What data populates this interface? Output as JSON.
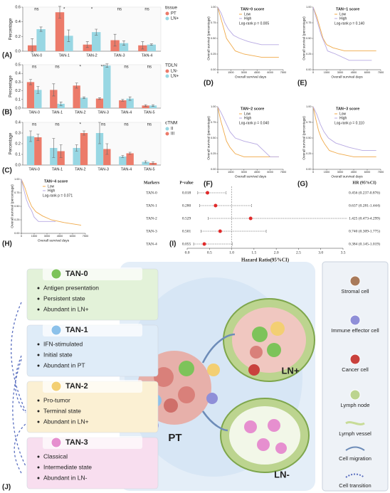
{
  "panel_labels": [
    "(A)",
    "(B)",
    "(C)",
    "(D)",
    "(E)",
    "(F)",
    "(G)",
    "(H)",
    "(I)",
    "(J)"
  ],
  "chart_data": [
    {
      "type": "bar",
      "ylabel": "Percentage",
      "legend_title": "tissue",
      "categories": [
        "TAN-0",
        "TAN-1",
        "TAN-2",
        "TAN-3",
        "TAN-4"
      ],
      "sig": [
        "ns",
        "*",
        "*",
        "ns",
        "ns"
      ],
      "series": [
        {
          "name": "PT",
          "color": "#ec7b6a",
          "values": [
            0.08,
            0.53,
            0.09,
            0.15,
            0.08
          ],
          "errors": [
            0.09,
            0.08,
            0.04,
            0.08,
            0.05
          ]
        },
        {
          "name": "LN+",
          "color": "#98d7e3",
          "values": [
            0.3,
            0.21,
            0.26,
            0.11,
            0.09
          ],
          "errors": [
            0.03,
            0.08,
            0.04,
            0.03,
            0.01
          ]
        }
      ],
      "ylim": [
        0,
        0.6
      ],
      "yticks": [
        {
          "value": 0,
          "label": "0.0"
        },
        {
          "value": 0.2,
          "label": "0.2"
        },
        {
          "value": 0.4,
          "label": "0.4"
        },
        {
          "value": 0.6,
          "label": "0.6"
        }
      ]
    },
    {
      "type": "bar",
      "ylabel": "Percentage",
      "legend_title": "TDLN",
      "categories": [
        "TAN-0",
        "TAN-1",
        "TAN-2",
        "TAN-3",
        "TAN-4",
        "TAN-5"
      ],
      "sig": [
        "ns",
        "ns",
        "*",
        "***",
        "ns",
        "ns"
      ],
      "series": [
        {
          "name": "LN-",
          "color": "#ec7b6a",
          "values": [
            0.3,
            0.21,
            0.26,
            0.11,
            0.09,
            0.03
          ],
          "errors": [
            0.03,
            0.07,
            0.03,
            0.01,
            0.01,
            0.01
          ]
        },
        {
          "name": "LN+",
          "color": "#98d7e3",
          "values": [
            0.21,
            0.05,
            0.12,
            0.49,
            0.11,
            0.03
          ],
          "errors": [
            0.04,
            0.02,
            0.01,
            0.02,
            0.02,
            0.01
          ]
        }
      ],
      "ylim": [
        0,
        0.5
      ],
      "yticks": [
        {
          "value": 0,
          "label": "0.0"
        },
        {
          "value": 0.1,
          "label": "0.1"
        },
        {
          "value": 0.2,
          "label": "0.2"
        },
        {
          "value": 0.3,
          "label": "0.3"
        },
        {
          "value": 0.4,
          "label": "0.4"
        },
        {
          "value": 0.5,
          "label": "0.5"
        }
      ]
    },
    {
      "type": "bar",
      "ylabel": "Percentage",
      "legend_title": "cTNM",
      "categories": [
        "TAN-0",
        "TAN-1",
        "TAN-2",
        "TAN-3",
        "TAN-4",
        "TAN-5"
      ],
      "sig": [
        "ns",
        "ns",
        "*",
        "ns",
        "ns",
        "ns"
      ],
      "series": [
        {
          "name": "II",
          "color": "#98d7e3",
          "values": [
            0.27,
            0.16,
            0.16,
            0.3,
            0.08,
            0.03
          ],
          "errors": [
            0.05,
            0.09,
            0.03,
            0.1,
            0.01,
            0.01
          ]
        },
        {
          "name": "III",
          "color": "#ec7b6a",
          "values": [
            0.26,
            0.13,
            0.3,
            0.15,
            0.11,
            0.02
          ],
          "errors": [
            0.03,
            0.06,
            0.02,
            0.05,
            0.01,
            0.01
          ]
        }
      ],
      "ylim": [
        0,
        0.4
      ],
      "yticks": [
        {
          "value": 0,
          "label": "0.0"
        },
        {
          "value": 0.1,
          "label": "0.1"
        },
        {
          "value": 0.2,
          "label": "0.2"
        },
        {
          "value": 0.3,
          "label": "0.3"
        },
        {
          "value": 0.4,
          "label": "0.4"
        }
      ]
    },
    {
      "type": "line",
      "title": "TAN−0 score",
      "annotation": "Log-rank p = 0.005",
      "xlabel": "Overall survival days",
      "ylabel": "Overall survival (percentage)",
      "series": [
        {
          "name": "Low",
          "color": "#f0aa4a",
          "x": [
            0,
            300,
            700,
            1000,
            1500,
            2000,
            3000,
            5000,
            7000
          ],
          "values": [
            1,
            0.85,
            0.65,
            0.5,
            0.4,
            0.3,
            0.25,
            0.2,
            0.2
          ]
        },
        {
          "name": "High",
          "color": "#b7a9e2",
          "x": [
            0,
            400,
            800,
            1200,
            1800,
            2500,
            3500,
            5000,
            7000
          ],
          "values": [
            1,
            0.9,
            0.75,
            0.65,
            0.55,
            0.5,
            0.45,
            0.4,
            0.4
          ]
        }
      ],
      "xlim": [
        0,
        7500
      ],
      "xticks": [
        0,
        1500,
        3000,
        4500,
        6000,
        7500
      ],
      "ylim": [
        0,
        1
      ],
      "yticks": [
        {
          "value": 0,
          "label": "0.00"
        },
        {
          "value": 0.25,
          "label": "0.25"
        },
        {
          "value": 0.5,
          "label": "0.50"
        },
        {
          "value": 0.75,
          "label": "0.75"
        },
        {
          "value": 1,
          "label": "1.00"
        }
      ]
    },
    {
      "type": "line",
      "title": "TAN−1 score",
      "annotation": "Log-rank p = 0.140",
      "xlabel": "Overall survival days",
      "ylabel": "Overall survival (percentage)",
      "series": [
        {
          "name": "Low",
          "color": "#f0aa4a",
          "x": [
            0,
            400,
            800,
            1100,
            1500,
            2200,
            3500,
            5500,
            7000
          ],
          "values": [
            1,
            0.85,
            0.65,
            0.5,
            0.4,
            0.35,
            0.3,
            0.3,
            0.3
          ]
        },
        {
          "name": "High",
          "color": "#b7a9e2",
          "x": [
            0,
            300,
            600,
            900,
            1200,
            1600,
            2500,
            4000,
            6500
          ],
          "values": [
            1,
            0.85,
            0.7,
            0.55,
            0.45,
            0.3,
            0.25,
            0.15,
            0.15
          ]
        }
      ],
      "xlim": [
        0,
        7500
      ],
      "xticks": [
        0,
        1500,
        3000,
        4500,
        6000,
        7500
      ],
      "ylim": [
        0,
        1
      ],
      "yticks": [
        {
          "value": 0,
          "label": "0.00"
        },
        {
          "value": 0.25,
          "label": "0.25"
        },
        {
          "value": 0.5,
          "label": "0.50"
        },
        {
          "value": 0.75,
          "label": "0.75"
        },
        {
          "value": 1,
          "label": "1.00"
        }
      ]
    },
    {
      "type": "line",
      "title": "TAN−2 score",
      "annotation": "Log-rank p = 0.040",
      "xlabel": "Overall survival days",
      "ylabel": "Overall survival (percentage)",
      "series": [
        {
          "name": "Low",
          "color": "#f0aa4a",
          "x": [
            0,
            300,
            700,
            1000,
            1400,
            2000,
            3000,
            4500,
            7000
          ],
          "values": [
            1,
            0.8,
            0.6,
            0.45,
            0.35,
            0.25,
            0.2,
            0.2,
            0.2
          ]
        },
        {
          "name": "High",
          "color": "#b7a9e2",
          "x": [
            0,
            400,
            900,
            1400,
            2000,
            3000,
            4500,
            6000,
            7000
          ],
          "values": [
            1,
            0.9,
            0.75,
            0.6,
            0.5,
            0.45,
            0.4,
            0.2,
            0.2
          ]
        }
      ],
      "xlim": [
        0,
        7500
      ],
      "xticks": [
        0,
        1500,
        3000,
        4500,
        6000,
        7500
      ],
      "ylim": [
        0,
        1
      ],
      "yticks": [
        {
          "value": 0,
          "label": "0.00"
        },
        {
          "value": 0.25,
          "label": "0.25"
        },
        {
          "value": 0.5,
          "label": "0.50"
        },
        {
          "value": 0.75,
          "label": "0.75"
        },
        {
          "value": 1,
          "label": "1.00"
        }
      ]
    },
    {
      "type": "line",
      "title": "TAN−3 score",
      "annotation": "Log-rank p = 0.110",
      "xlabel": "Overall survival days",
      "ylabel": "Overall survival (percentage)",
      "series": [
        {
          "name": "Low",
          "color": "#f0aa4a",
          "x": [
            0,
            300,
            600,
            900,
            1300,
            1800,
            2800,
            4500,
            7000
          ],
          "values": [
            1,
            0.8,
            0.62,
            0.5,
            0.4,
            0.3,
            0.25,
            0.2,
            0.2
          ]
        },
        {
          "name": "High",
          "color": "#b7a9e2",
          "x": [
            0,
            400,
            800,
            1200,
            1700,
            2500,
            4000,
            5500,
            7000
          ],
          "values": [
            1,
            0.88,
            0.72,
            0.6,
            0.5,
            0.42,
            0.35,
            0.3,
            0.3
          ]
        }
      ],
      "xlim": [
        0,
        7500
      ],
      "xticks": [
        0,
        1500,
        3000,
        4500,
        6000,
        7500
      ],
      "ylim": [
        0,
        1
      ],
      "yticks": [
        {
          "value": 0,
          "label": "0.00"
        },
        {
          "value": 0.25,
          "label": "0.25"
        },
        {
          "value": 0.5,
          "label": "0.50"
        },
        {
          "value": 0.75,
          "label": "0.75"
        },
        {
          "value": 1,
          "label": "1.00"
        }
      ]
    },
    {
      "type": "line",
      "title": "TAN−4 score",
      "annotation": "Log-rank p = 0.071",
      "xlabel": "Overall survival days",
      "ylabel": "Overall survival (percentage)",
      "series": [
        {
          "name": "Low",
          "color": "#f0aa4a",
          "x": [
            0,
            400,
            800,
            1200,
            1700,
            2500,
            3500,
            5000,
            7000
          ],
          "values": [
            1,
            0.85,
            0.65,
            0.5,
            0.4,
            0.32,
            0.25,
            0.2,
            0.15
          ]
        },
        {
          "name": "High",
          "color": "#b7a9e2",
          "x": [
            0,
            300,
            600,
            900,
            1200,
            1500,
            2000,
            3000,
            4000
          ],
          "values": [
            1,
            0.8,
            0.62,
            0.5,
            0.42,
            0.3,
            0.22,
            0.22,
            0.22
          ]
        }
      ],
      "xlim": [
        0,
        7500
      ],
      "xticks": [
        0,
        1500,
        3000,
        4500,
        6000,
        7500
      ],
      "ylim": [
        0,
        1
      ],
      "yticks": [
        {
          "value": 0,
          "label": "0.00"
        },
        {
          "value": 0.25,
          "label": "0.25"
        },
        {
          "value": 0.5,
          "label": "0.50"
        },
        {
          "value": 0.75,
          "label": "0.75"
        },
        {
          "value": 1,
          "label": "1.00"
        }
      ]
    },
    {
      "type": "forest",
      "headers": [
        "Markers",
        "P-value",
        "HR (95%CI)"
      ],
      "xlabel": "Hazard Ratio(95%CI)",
      "categories": [
        "TAN-0",
        "TAN-1",
        "TAN-2",
        "TAN-3",
        "TAN-4"
      ],
      "pvalues": [
        "0.018",
        "0.280",
        "0.529",
        "0.501",
        "0.055"
      ],
      "values": [
        0.456,
        0.637,
        1.425,
        0.74,
        0.384
      ],
      "lower": [
        0.237,
        0.281,
        0.473,
        0.309,
        0.145
      ],
      "upper": [
        0.876,
        1.444,
        4.299,
        1.775,
        1.019
      ],
      "value_labels": [
        "0.456 (0.237-0.876)",
        "0.637 (0.281-1.444)",
        "1.425 (0.473-4.299)",
        "0.740 (0.309-1.775)",
        "0.384 (0.145-1.019)"
      ],
      "color": "#e02a2a",
      "reference": 1,
      "xlim": [
        0,
        3.5
      ],
      "xticks": [
        {
          "value": 0,
          "label": "0.0"
        },
        {
          "value": 0.5,
          "label": "0.5"
        },
        {
          "value": 1,
          "label": "1.0"
        },
        {
          "value": 1.5,
          "label": "1.5"
        },
        {
          "value": 2,
          "label": "2.0"
        },
        {
          "value": 2.5,
          "label": "2.5"
        },
        {
          "value": 3,
          "label": "3.0"
        },
        {
          "value": 3.5,
          "label": "3.5"
        }
      ]
    }
  ],
  "diagram": {
    "states": [
      {
        "title": "TAN-0",
        "color": "#e3f2d9",
        "icon": "#7dc35a",
        "bullets": [
          "Antigen presentation",
          "Persistent state",
          "Abundant in LN+"
        ]
      },
      {
        "title": "TAN-1",
        "color": "#dfecf8",
        "icon": "#8cc1ea",
        "bullets": [
          "IFN-stimulated",
          "Initial state",
          "Abundant in PT"
        ]
      },
      {
        "title": "TAN-2",
        "color": "#fbf0d3",
        "icon": "#f3cf73",
        "bullets": [
          "Pro-tumor",
          "Terminal state",
          "Abundant in LN+"
        ]
      },
      {
        "title": "TAN-3",
        "color": "#f8deef",
        "icon": "#e68fcf",
        "bullets": [
          "Classical",
          "Intermediate state",
          "Abundant in LN-"
        ]
      }
    ],
    "sites": [
      "PT",
      "LN+",
      "LN-"
    ],
    "legend": [
      "Stromal cell",
      "Immune effector cell",
      "Cancer cell",
      "Lymph node",
      "Lymph vessel",
      "Cell migration",
      "Cell transition"
    ]
  }
}
